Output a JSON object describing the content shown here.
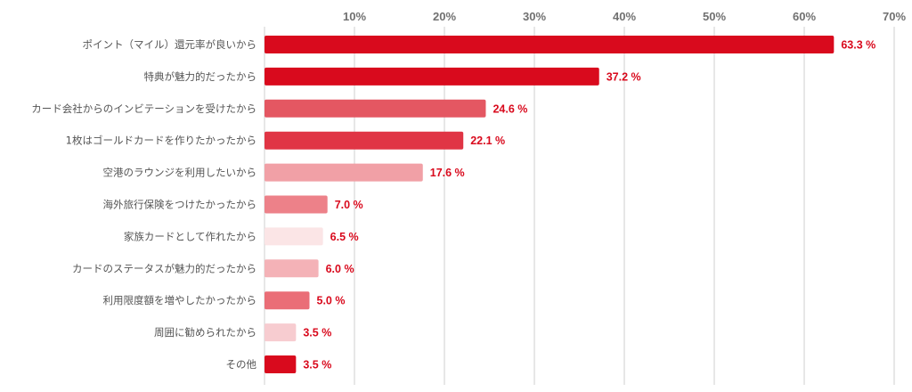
{
  "chart_data": {
    "type": "bar",
    "orientation": "horizontal",
    "categories": [
      "ポイント（マイル）還元率が良いから",
      "特典が魅力的だったから",
      "カード会社からのインビテーションを受けたから",
      "1枚はゴールドカードを作りたかったから",
      "空港のラウンジを利用したいから",
      "海外旅行保険をつけたかったから",
      "家族カードとして作れたから",
      "カードのステータスが魅力的だったから",
      "利用限度額を増やしたかったから",
      "周囲に勧められたから",
      "その他"
    ],
    "values": [
      63.3,
      37.2,
      24.6,
      22.1,
      17.6,
      7.0,
      6.5,
      6.0,
      5.0,
      3.5,
      3.5
    ],
    "value_labels": [
      "63.3 %",
      "37.2 %",
      "24.6 %",
      "22.1 %",
      "17.6 %",
      "7.0 %",
      "6.5 %",
      "6.0 %",
      "5.0 %",
      "3.5 %",
      "3.5 %"
    ],
    "bar_colors": [
      "#d90a1d",
      "#d90a1d",
      "#e45762",
      "#e03545",
      "#f1a0a6",
      "#ed8189",
      "#fbe5e6",
      "#f4b2b7",
      "#ea6e77",
      "#f7ccd0",
      "#d90a1d"
    ],
    "xticks": [
      10,
      20,
      30,
      40,
      50,
      60,
      70
    ],
    "xtick_labels": [
      "10%",
      "20%",
      "30%",
      "40%",
      "50%",
      "60%",
      "70%"
    ],
    "xlim": [
      0,
      70
    ],
    "grid": true,
    "tick_position": "top",
    "title": "",
    "xlabel": "",
    "ylabel": ""
  }
}
